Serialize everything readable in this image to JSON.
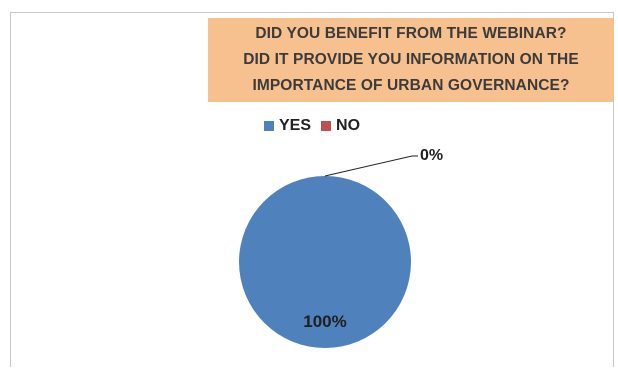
{
  "chart_data": {
    "type": "pie",
    "title_lines": [
      "DID YOU BENEFIT FROM THE WEBINAR?",
      "DID IT PROVIDE YOU INFORMATION ON THE",
      "IMPORTANCE OF URBAN GOVERNANCE?"
    ],
    "categories": [
      "YES",
      "NO"
    ],
    "values": [
      100,
      0
    ],
    "data_labels": [
      "100%",
      "0%"
    ],
    "colors": [
      "#4f81bd",
      "#c0504d"
    ],
    "title_background": "#f7c08f",
    "legend_position": "top"
  }
}
